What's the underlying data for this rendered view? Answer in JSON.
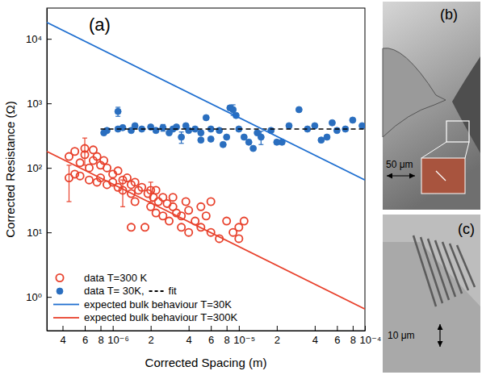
{
  "chart_data": {
    "type": "scatter",
    "panel_label": "(a)",
    "xlabel": "Corrected Spacing (m)",
    "ylabel": "Corrected Resistance (Ω)",
    "log": true,
    "legend": "lower left",
    "xlim": [
      3e-07,
      0.0001
    ],
    "ylim": [
      0.3,
      30000
    ],
    "xticks": [
      {
        "value": 4e-07,
        "label": "4"
      },
      {
        "value": 6e-07,
        "label": "6"
      },
      {
        "value": 8e-07,
        "label": "8"
      },
      {
        "value": 1e-06,
        "label": "10⁻⁶"
      },
      {
        "value": 2e-06,
        "label": "2"
      },
      {
        "value": 4e-06,
        "label": "4"
      },
      {
        "value": 6e-06,
        "label": "6"
      },
      {
        "value": 8e-06,
        "label": "8"
      },
      {
        "value": 1e-05,
        "label": "10⁻⁵"
      },
      {
        "value": 2e-05,
        "label": "2"
      },
      {
        "value": 4e-05,
        "label": "4"
      },
      {
        "value": 6e-05,
        "label": "6"
      },
      {
        "value": 8e-05,
        "label": "8"
      },
      {
        "value": 0.0001,
        "label": "10⁻⁴"
      }
    ],
    "yticks": [
      {
        "value": 1,
        "label": "10⁰"
      },
      {
        "value": 10,
        "label": "10¹"
      },
      {
        "value": 100,
        "label": "10²"
      },
      {
        "value": 1000,
        "label": "10³"
      },
      {
        "value": 10000,
        "label": "10⁴"
      }
    ],
    "series": [
      {
        "name": "data T=300 K",
        "type": "scatter",
        "color": "#e8412c",
        "marker": "open_circle",
        "x": [
          4.5e-07,
          4.5e-07,
          5e-07,
          5e-07,
          5.5e-07,
          5.5e-07,
          6e-07,
          6e-07,
          6.5e-07,
          6.5e-07,
          7e-07,
          7e-07,
          7.5e-07,
          7.5e-07,
          8e-07,
          8e-07,
          8.5e-07,
          9e-07,
          9e-07,
          1e-06,
          1e-06,
          1.1e-06,
          1.1e-06,
          1.2e-06,
          1.2e-06,
          1.3e-06,
          1.4e-06,
          1.4e-06,
          1.4e-06,
          1.5e-06,
          1.5e-06,
          1.6e-06,
          1.7e-06,
          1.8e-06,
          1.9e-06,
          2e-06,
          2e-06,
          2.1e-06,
          2.2e-06,
          2.2e-06,
          2.3e-06,
          2.5e-06,
          2.5e-06,
          2.7e-06,
          2.8e-06,
          3e-06,
          3e-06,
          3.2e-06,
          3.5e-06,
          3.5e-06,
          3.8e-06,
          4e-06,
          4e-06,
          4.5e-06,
          5e-06,
          5e-06,
          5.5e-06,
          6e-06,
          6e-06,
          7e-06,
          8e-06,
          9e-06,
          1e-05,
          1e-05,
          1.1e-05
        ],
        "values": [
          150,
          70,
          180,
          80,
          120,
          75,
          200,
          160,
          100,
          65,
          190,
          130,
          150,
          60,
          110,
          70,
          130,
          100,
          55,
          80,
          60,
          90,
          50,
          65,
          45,
          70,
          55,
          40,
          12,
          60,
          30,
          45,
          50,
          12,
          40,
          45,
          25,
          35,
          45,
          20,
          30,
          35,
          18,
          28,
          15,
          25,
          35,
          20,
          18,
          12,
          30,
          22,
          10,
          15,
          25,
          12,
          18,
          30,
          10,
          8,
          15,
          10,
          12,
          8,
          15
        ],
        "errors": [
          null,
          40,
          null,
          null,
          null,
          null,
          90,
          null,
          null,
          null,
          null,
          null,
          null,
          null,
          null,
          null,
          null,
          null,
          null,
          null,
          null,
          null,
          null,
          null,
          20,
          null,
          null,
          null,
          null,
          null,
          null,
          null,
          null,
          null,
          null,
          15,
          null,
          null,
          null,
          null,
          null,
          null,
          null,
          null,
          null,
          null,
          null,
          null,
          null,
          null,
          null,
          null,
          null,
          null,
          null,
          null,
          null,
          null,
          null,
          null,
          null,
          null,
          null,
          null,
          null
        ]
      },
      {
        "name": "data T= 30K,",
        "type": "scatter",
        "color": "#2a6ebf",
        "marker": "filled_circle",
        "x": [
          8.5e-07,
          9e-07,
          1.1e-06,
          1.1e-06,
          1.2e-06,
          1.4e-06,
          1.5e-06,
          1.7e-06,
          2e-06,
          2.2e-06,
          2.5e-06,
          2.8e-06,
          3e-06,
          3.2e-06,
          3.5e-06,
          3.8e-06,
          4e-06,
          4.5e-06,
          5e-06,
          5e-06,
          5.5e-06,
          6e-06,
          6e-06,
          7e-06,
          7.5e-06,
          8e-06,
          8.5e-06,
          9e-06,
          9.5e-06,
          1e-05,
          1.1e-05,
          1.2e-05,
          1.3e-05,
          1.4e-05,
          1.5e-05,
          1.8e-05,
          2e-05,
          2.2e-05,
          2.5e-05,
          3e-05,
          3.5e-05,
          4e-05,
          4.5e-05,
          5e-05,
          5.5e-05,
          6e-05,
          7e-05,
          8e-05,
          9.5e-05
        ],
        "values": [
          350,
          380,
          750,
          400,
          420,
          380,
          450,
          400,
          430,
          380,
          420,
          350,
          400,
          430,
          300,
          450,
          380,
          400,
          350,
          270,
          600,
          400,
          280,
          380,
          230,
          300,
          850,
          800,
          650,
          400,
          300,
          250,
          200,
          350,
          300,
          380,
          250,
          250,
          450,
          800,
          400,
          450,
          270,
          300,
          500,
          380,
          400,
          550,
          450
        ],
        "errors": [
          null,
          null,
          120,
          null,
          null,
          null,
          null,
          null,
          null,
          null,
          50,
          null,
          null,
          null,
          60,
          null,
          null,
          null,
          null,
          null,
          null,
          null,
          null,
          null,
          null,
          null,
          null,
          150,
          null,
          null,
          null,
          null,
          null,
          null,
          70,
          null,
          null,
          null,
          null,
          null,
          null,
          null,
          null,
          null,
          null,
          null,
          null,
          null,
          null
        ]
      },
      {
        "name": "fit",
        "type": "line",
        "color": "#000000",
        "line_style": "dashed",
        "x": [
          8e-07,
          0.0001
        ],
        "values": [
          400,
          400
        ]
      },
      {
        "name": "expected bulk behaviour T=30K",
        "type": "line",
        "color": "#1f6fd0",
        "line_style": "solid",
        "x": [
          3e-07,
          0.0001
        ],
        "values": [
          18000,
          65
        ]
      },
      {
        "name": "expected bulk behaviour T=300K",
        "type": "line",
        "color": "#e8412c",
        "line_style": "solid",
        "x": [
          3e-07,
          0.0001
        ],
        "values": [
          180,
          0.65
        ]
      }
    ]
  },
  "panels": [
    {
      "label": "(b)",
      "scale_bar": "50 μm"
    },
    {
      "label": "(c)",
      "scale_bar": "10 μm"
    }
  ]
}
